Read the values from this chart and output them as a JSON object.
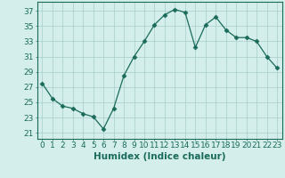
{
  "x": [
    0,
    1,
    2,
    3,
    4,
    5,
    6,
    7,
    8,
    9,
    10,
    11,
    12,
    13,
    14,
    15,
    16,
    17,
    18,
    19,
    20,
    21,
    22,
    23
  ],
  "y": [
    27.5,
    25.5,
    24.5,
    24.2,
    23.5,
    23.1,
    21.5,
    24.2,
    28.5,
    31.0,
    33.0,
    35.2,
    36.5,
    37.2,
    36.8,
    32.2,
    35.2,
    36.2,
    34.5,
    33.5,
    33.5,
    33.0,
    31.0,
    29.5
  ],
  "line_color": "#1a6b5a",
  "marker": "D",
  "marker_size": 2.5,
  "bg_color": "#d4eeec",
  "grid_color": "#a8ceca",
  "xlabel": "Humidex (Indice chaleur)",
  "yticks": [
    21,
    23,
    25,
    27,
    29,
    31,
    33,
    35,
    37
  ],
  "xticks": [
    0,
    1,
    2,
    3,
    4,
    5,
    6,
    7,
    8,
    9,
    10,
    11,
    12,
    13,
    14,
    15,
    16,
    17,
    18,
    19,
    20,
    21,
    22,
    23
  ],
  "ylim": [
    20.2,
    38.2
  ],
  "xlim": [
    -0.5,
    23.5
  ],
  "tick_fontsize": 6.5,
  "xlabel_fontsize": 7.5
}
